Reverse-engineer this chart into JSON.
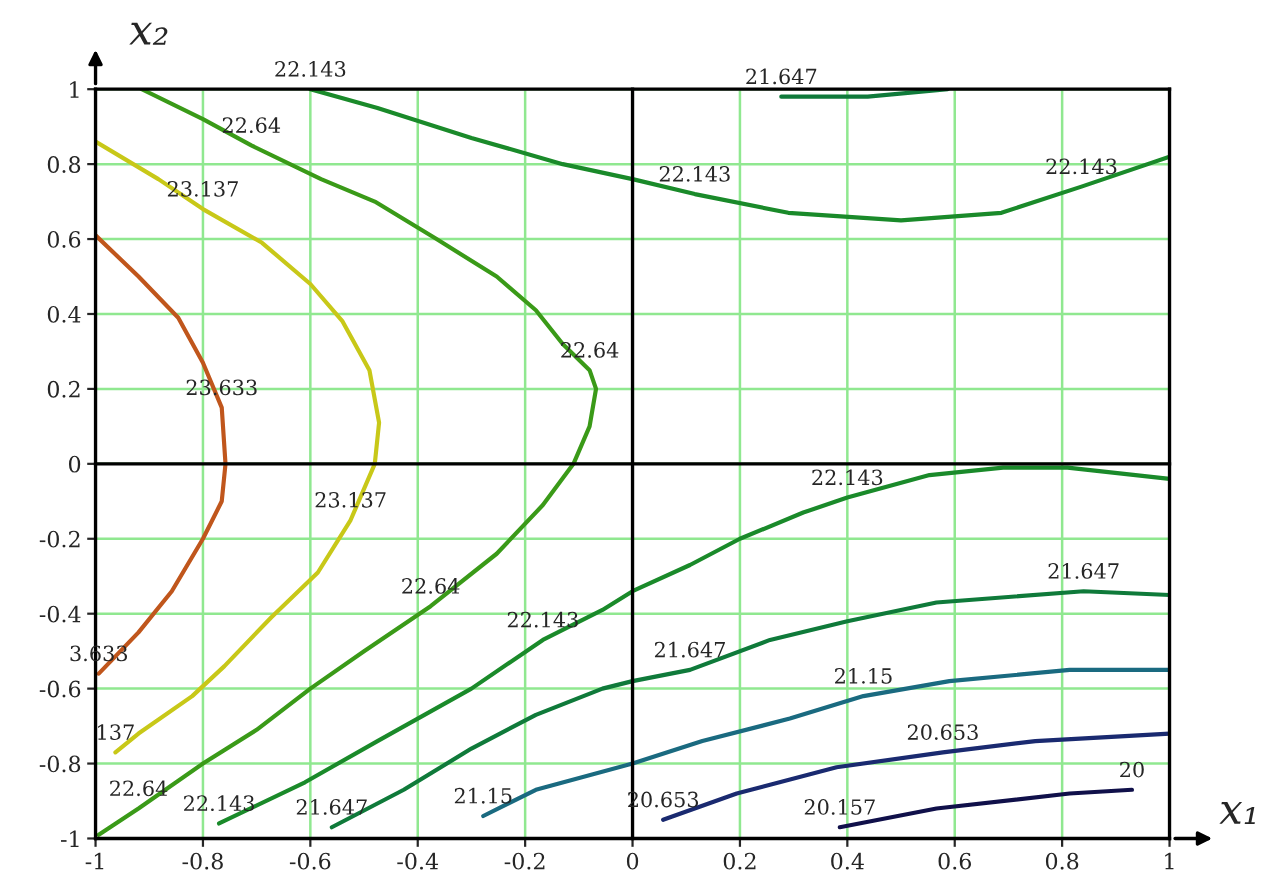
{
  "chart_data": {
    "type": "line",
    "xlabel": "x₁",
    "ylabel": "x₂",
    "xlim": [
      -1,
      1
    ],
    "ylim": [
      -1,
      1
    ],
    "xticks": [
      -1,
      -0.8,
      -0.6,
      -0.4,
      -0.2,
      0,
      0.2,
      0.4,
      0.6,
      0.8,
      1
    ],
    "yticks": [
      -1,
      -0.8,
      -0.6,
      -0.4,
      -0.2,
      0,
      0.2,
      0.4,
      0.6,
      0.8,
      1
    ],
    "grid": true,
    "series": [
      {
        "color": "#c0561c",
        "x": [
          -1,
          -0.92,
          -0.846,
          -0.8,
          -0.765,
          -0.758,
          -0.765,
          -0.8,
          -0.858,
          -0.92,
          -0.994
        ],
        "values": [
          0.61,
          0.5,
          0.39,
          0.27,
          0.15,
          0,
          -0.1,
          -0.2,
          -0.34,
          -0.45,
          -0.56
        ]
      },
      {
        "color": "#c8c818",
        "x": [
          -1,
          -0.883,
          -0.8,
          -0.69,
          -0.6,
          -0.54,
          -0.49,
          -0.472,
          -0.48,
          -0.525,
          -0.586,
          -0.673,
          -0.76,
          -0.82,
          -0.92,
          -0.963
        ],
        "values": [
          0.86,
          0.76,
          0.68,
          0.59,
          0.48,
          0.38,
          0.25,
          0.11,
          0,
          -0.15,
          -0.29,
          -0.41,
          -0.54,
          -0.62,
          -0.72,
          -0.77
        ]
      },
      {
        "color": "#3a9a18",
        "x": [
          -0.914,
          -0.8,
          -0.71,
          -0.58,
          -0.48,
          -0.365,
          -0.253,
          -0.18,
          -0.13,
          -0.08,
          -0.068,
          -0.08,
          -0.11,
          -0.167,
          -0.253,
          -0.376,
          -0.5,
          -0.6,
          -0.7,
          -0.8,
          -0.92,
          -0.994
        ],
        "values": [
          1,
          0.92,
          0.85,
          0.76,
          0.7,
          0.6,
          0.5,
          0.41,
          0.32,
          0.25,
          0.2,
          0.1,
          0,
          -0.11,
          -0.24,
          -0.38,
          -0.5,
          -0.6,
          -0.71,
          -0.8,
          -0.92,
          -0.99
        ]
      },
      {
        "color": "#1a8a2a",
        "x": [
          -0.6,
          -0.475,
          -0.3,
          -0.13,
          0,
          0.116,
          0.29,
          0.5,
          0.687,
          0.836,
          1
        ],
        "values": [
          1,
          0.95,
          0.87,
          0.8,
          0.76,
          0.72,
          0.67,
          0.65,
          0.67,
          0.74,
          0.82
        ]
      },
      {
        "color": "#1a8a2a",
        "x": [
          -0.77,
          -0.61,
          -0.475,
          -0.3,
          -0.167,
          -0.056,
          0,
          0.107,
          0.2,
          0.318,
          0.4,
          0.553,
          0.69,
          0.81,
          1
        ],
        "values": [
          -0.96,
          -0.85,
          -0.74,
          -0.6,
          -0.47,
          -0.39,
          -0.34,
          -0.27,
          -0.2,
          -0.13,
          -0.09,
          -0.03,
          -0.01,
          -0.01,
          -0.04
        ]
      },
      {
        "color": "#0f7a3a",
        "x": [
          0.277,
          0.438,
          0.587
        ],
        "values": [
          0.98,
          0.98,
          1
        ]
      },
      {
        "color": "#0f7a3a",
        "x": [
          -0.56,
          -0.426,
          -0.3,
          -0.18,
          -0.056,
          0,
          0.107,
          0.256,
          0.4,
          0.566,
          0.84,
          1
        ],
        "values": [
          -0.97,
          -0.87,
          -0.76,
          -0.67,
          -0.6,
          -0.58,
          -0.55,
          -0.47,
          -0.42,
          -0.37,
          -0.34,
          -0.35
        ]
      },
      {
        "color": "#1a6a80",
        "x": [
          -0.278,
          -0.18,
          0,
          0.13,
          0.293,
          0.43,
          0.59,
          0.814,
          1
        ],
        "values": [
          -0.94,
          -0.87,
          -0.8,
          -0.74,
          -0.68,
          -0.62,
          -0.58,
          -0.55,
          -0.55
        ]
      },
      {
        "color": "#1a2a70",
        "x": [
          0.057,
          0.194,
          0.38,
          0.578,
          0.75,
          1
        ],
        "values": [
          -0.95,
          -0.88,
          -0.81,
          -0.77,
          -0.74,
          -0.72
        ]
      },
      {
        "color": "#10104a",
        "x": [
          0.386,
          0.566,
          0.814,
          0.93
        ],
        "values": [
          -0.97,
          -0.92,
          -0.88,
          -0.87
        ]
      }
    ],
    "annotations": [
      {
        "text": "23.633",
        "x": -0.765,
        "y": 0.15
      },
      {
        "text": "3.633",
        "x": -0.994,
        "y": -0.56
      },
      {
        "text": "23.137",
        "x": -0.8,
        "y": 0.68
      },
      {
        "text": "23.137",
        "x": -0.525,
        "y": -0.15
      },
      {
        "text": "137",
        "x": -0.963,
        "y": -0.77
      },
      {
        "text": "22.64",
        "x": -0.71,
        "y": 0.85
      },
      {
        "text": "22.64",
        "x": -0.08,
        "y": 0.25
      },
      {
        "text": "22.64",
        "x": -0.376,
        "y": -0.38
      },
      {
        "text": "22.64",
        "x": -0.92,
        "y": -0.92
      },
      {
        "text": "22.143",
        "x": -0.6,
        "y": 1
      },
      {
        "text": "22.143",
        "x": 0.116,
        "y": 0.72
      },
      {
        "text": "22.143",
        "x": 0.836,
        "y": 0.74
      },
      {
        "text": "22.143",
        "x": 0.4,
        "y": -0.09
      },
      {
        "text": "22.143",
        "x": -0.167,
        "y": -0.47
      },
      {
        "text": "22.143",
        "x": -0.77,
        "y": -0.96
      },
      {
        "text": "21.647",
        "x": 0.277,
        "y": 0.98
      },
      {
        "text": "21.647",
        "x": 0.107,
        "y": -0.55
      },
      {
        "text": "21.647",
        "x": 0.84,
        "y": -0.34
      },
      {
        "text": "21.647",
        "x": -0.56,
        "y": -0.97
      },
      {
        "text": "21.15",
        "x": -0.278,
        "y": -0.94
      },
      {
        "text": "21.15",
        "x": 0.43,
        "y": -0.62
      },
      {
        "text": "20.653",
        "x": 0.057,
        "y": -0.95
      },
      {
        "text": "20.653",
        "x": 0.578,
        "y": -0.77
      },
      {
        "text": "20.157",
        "x": 0.386,
        "y": -0.97
      },
      {
        "text": "20",
        "x": 0.93,
        "y": -0.87
      }
    ]
  }
}
